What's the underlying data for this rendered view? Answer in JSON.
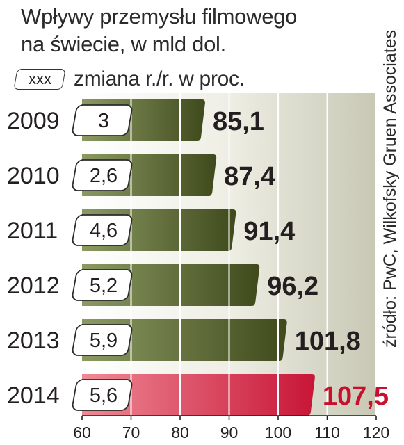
{
  "title": {
    "line1": "Wpływy przemysłu filmowego",
    "line2": "na świecie, w mld dol."
  },
  "legend": {
    "box_label": "xxx",
    "text": "zmiana r./r. w proc."
  },
  "source": "źródło: PwC, Wilkofsky Gruen Associates",
  "colors": {
    "bar_dark": "#3f4a1c",
    "bar_light": "#8b9a63",
    "bar_highlight_dark": "#c81537",
    "bar_highlight_light": "#ef8a95",
    "highlight_text": "#c8102e",
    "text": "#231f20",
    "background_gradient": "#c7c8b4"
  },
  "chart_data": {
    "type": "bar",
    "orientation": "horizontal",
    "categories": [
      "2009",
      "2010",
      "2011",
      "2012",
      "2013",
      "2014"
    ],
    "values": [
      85.1,
      87.4,
      91.4,
      96.2,
      101.8,
      107.5
    ],
    "value_labels": [
      "85,1",
      "87,4",
      "91,4",
      "96,2",
      "101,8",
      "107,5"
    ],
    "changes": [
      "3",
      "2,6",
      "4,6",
      "5,2",
      "5,9",
      "5,6"
    ],
    "highlight_index": 5,
    "xlim": [
      60,
      120
    ],
    "x_ticks": [
      60,
      70,
      80,
      90,
      100,
      110,
      120
    ],
    "x_tick_labels": [
      "60",
      "70",
      "80",
      "90",
      "100",
      "110",
      "120"
    ],
    "grid": true
  }
}
